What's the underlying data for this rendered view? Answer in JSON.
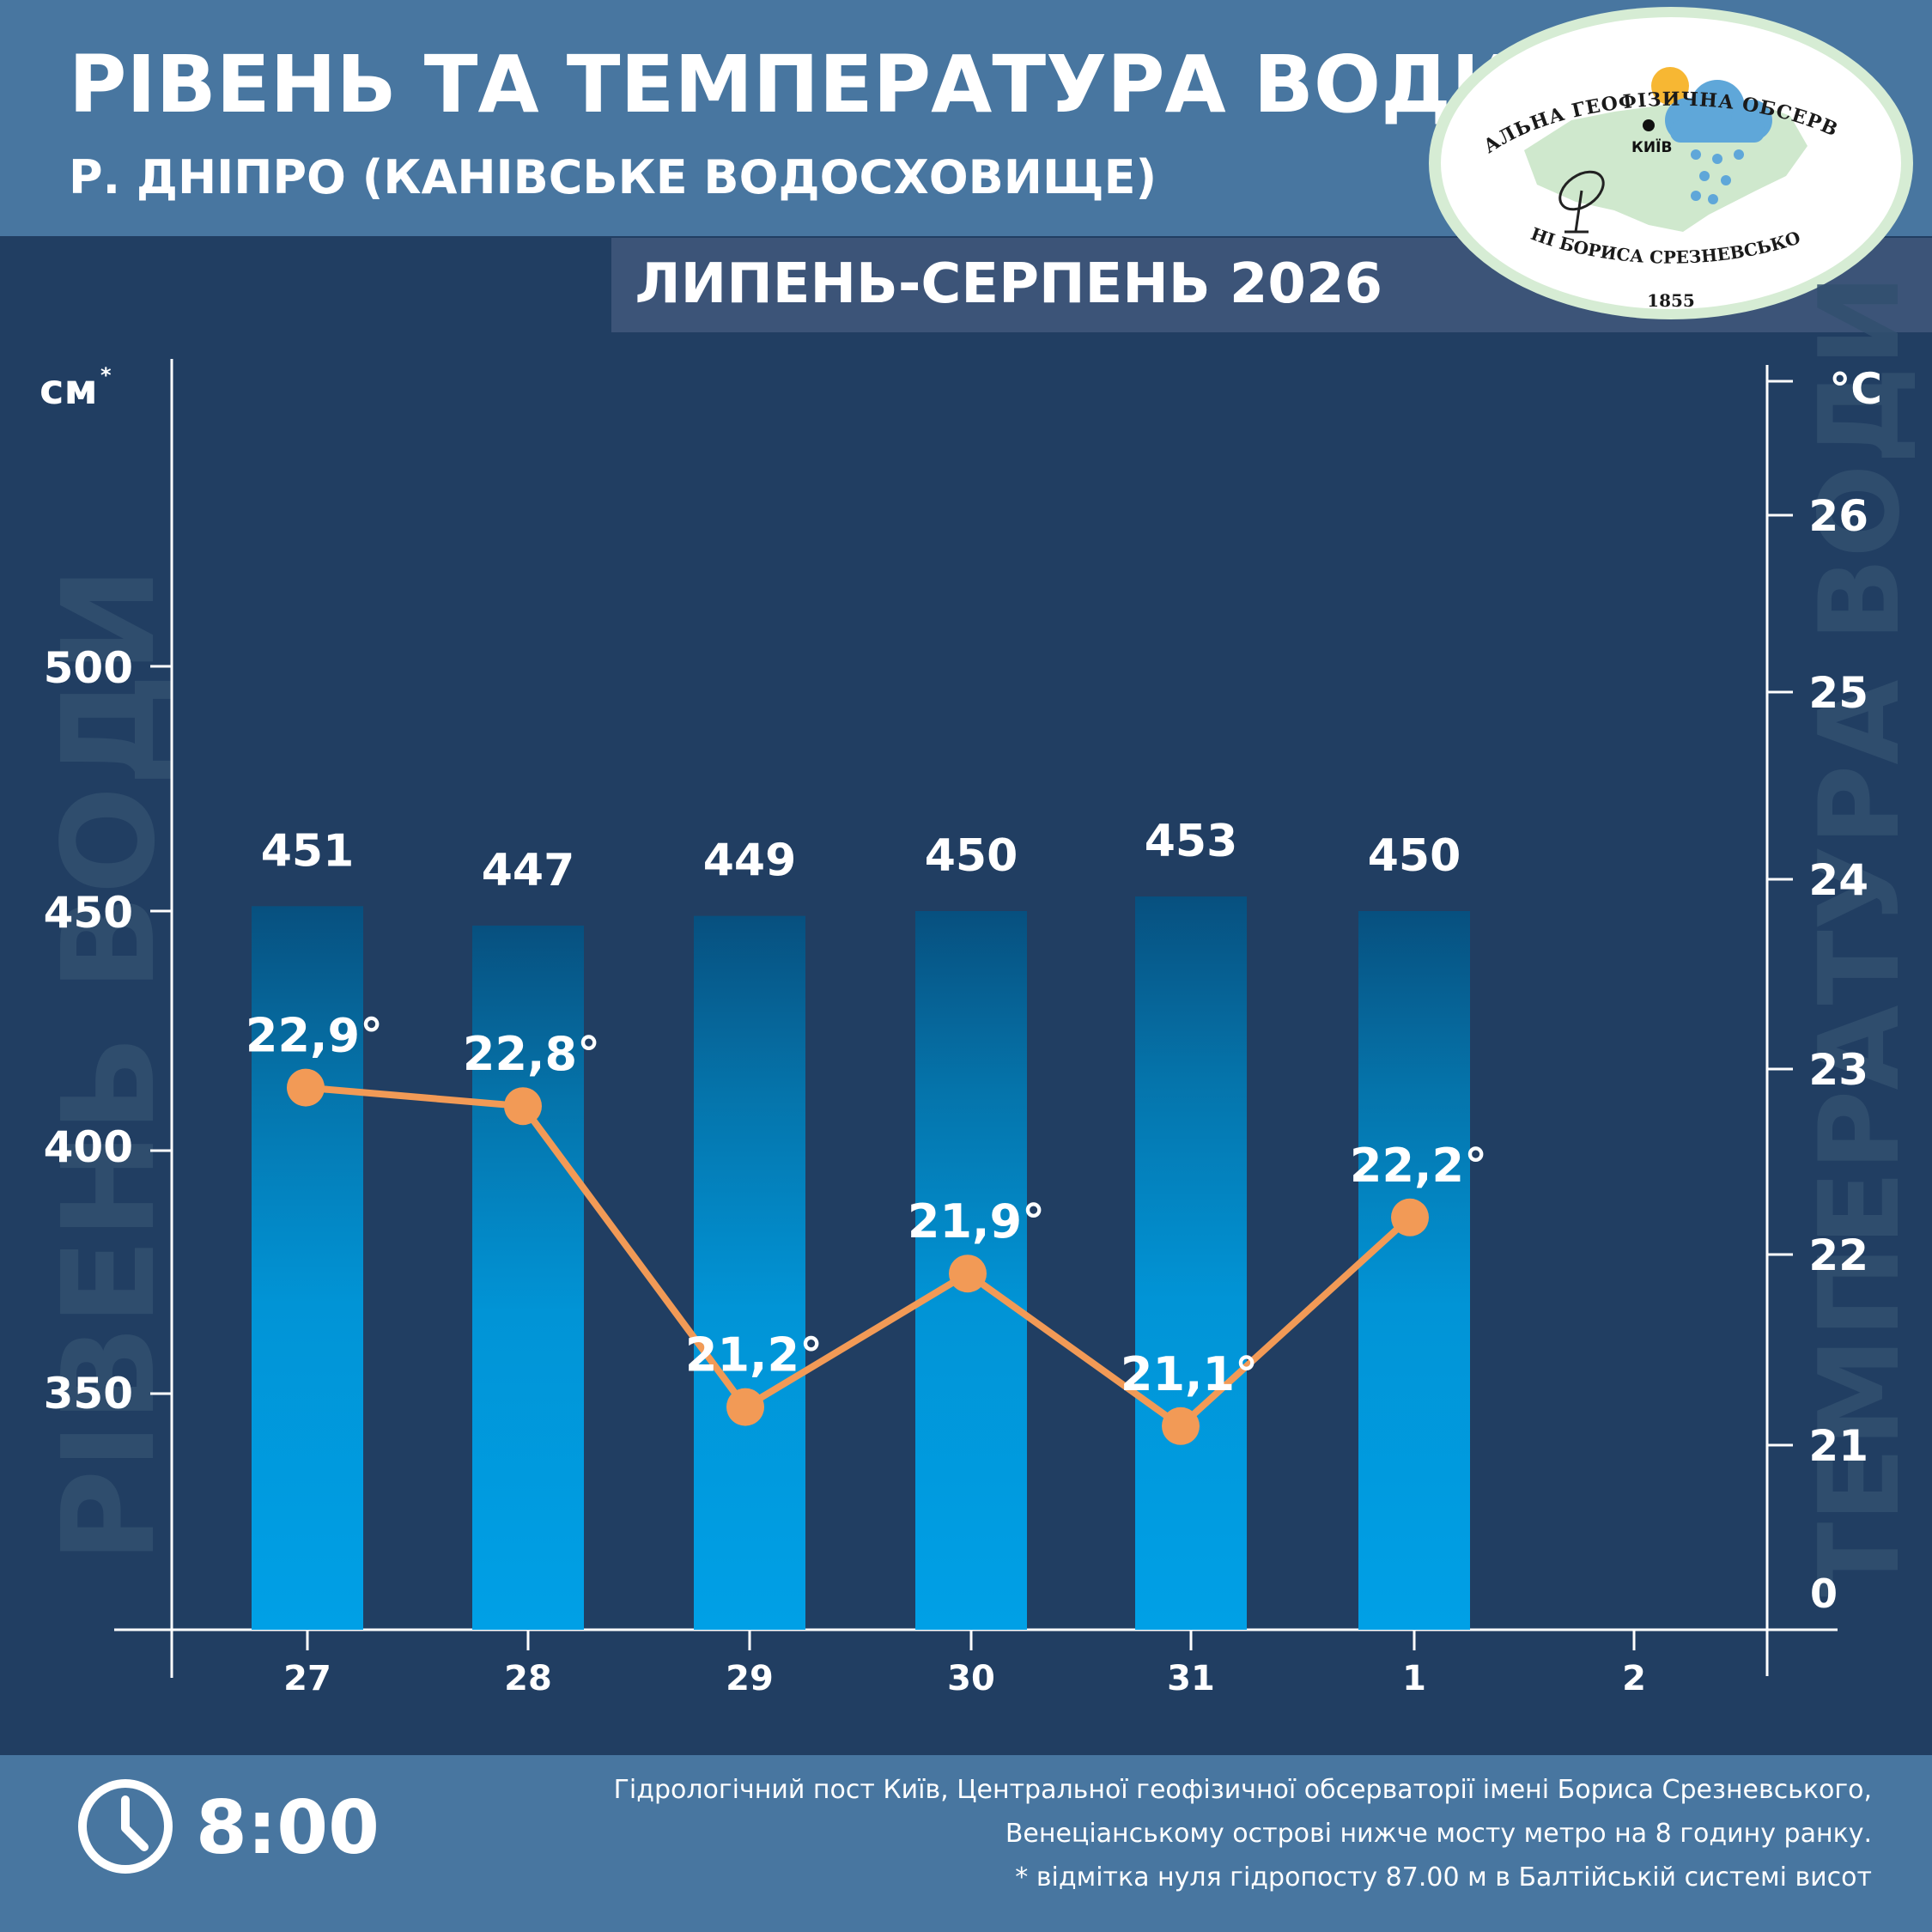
{
  "header": {
    "title": "РІВЕНЬ ТА ТЕМПЕРАТУРА ВОДИ",
    "subtitle": "Р. ДНІПРО (КАНІВСЬКЕ ВОДОСХОВИЩЕ)",
    "period": "ЛИПЕНЬ-СЕРПЕНЬ 2026"
  },
  "logo": {
    "top_text": "ЦЕНТРАЛЬНА ГЕОФІЗИЧНА ОБСЕРВАТОРІЯ",
    "bottom_text": "ІМЕНІ БОРИСА СРЕЗНЕВСЬКОГО",
    "year": "1855",
    "city": "КИЇВ"
  },
  "left_axis": {
    "unit": "см",
    "unit_mark": "*",
    "side_label": "РІВЕНЬ ВОДИ",
    "ticks": [
      "500",
      "450",
      "400",
      "350"
    ]
  },
  "right_axis": {
    "unit": "°С",
    "side_label": "ТЕМПЕРАТУРА ВОДИ",
    "ticks": [
      "26",
      "25",
      "24",
      "23",
      "22",
      "21",
      "0"
    ]
  },
  "chart_data": {
    "type": "bar",
    "categories": [
      "27",
      "28",
      "29",
      "30",
      "31",
      "1",
      "2"
    ],
    "series": [
      {
        "values": [
          451,
          447,
          449,
          450,
          453,
          450,
          null
        ],
        "labels": [
          "451",
          "447",
          "449",
          "450",
          "453",
          "450",
          ""
        ],
        "axis": "left",
        "type": "bar"
      },
      {
        "values": [
          22.9,
          22.8,
          21.2,
          21.9,
          21.1,
          22.2,
          null
        ],
        "labels": [
          "22,9°",
          "22,8°",
          "21,2°",
          "21,9°",
          "21,1°",
          "22,2°",
          ""
        ],
        "axis": "right",
        "type": "line",
        "color": "#f29a56"
      }
    ],
    "left_ticks": [
      500,
      450,
      400,
      350
    ],
    "right_ticks": [
      26,
      25,
      24,
      23,
      22,
      21,
      0
    ],
    "colors": {
      "bar_top": "#07507f",
      "bar_bottom": "#00a0e6",
      "line": "#f29a56"
    }
  },
  "footer": {
    "time": "8:00",
    "note_lines": [
      "Гідрологічний пост Київ, Центральної геофізичної обсерваторії імені Бориса Срезневського,",
      "Венеціанському острові нижче мосту метро  на 8 годину ранку.",
      "* відмітка нуля гідропосту 87.00 м в Балтійській системі висот"
    ]
  }
}
